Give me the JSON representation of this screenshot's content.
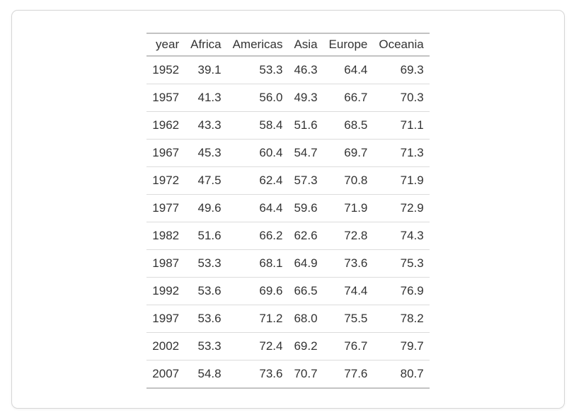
{
  "colors": {
    "text": "#333333",
    "heavy_rule": "#c3c3c3",
    "row_rule": "#dcdcdc",
    "card_border": "#d6d6d6",
    "background": "#ffffff"
  },
  "chart_data": {
    "type": "table",
    "title": "",
    "columns": [
      "year",
      "Africa",
      "Americas",
      "Asia",
      "Europe",
      "Oceania"
    ],
    "rows": [
      [
        "1952",
        "39.1",
        "53.3",
        "46.3",
        "64.4",
        "69.3"
      ],
      [
        "1957",
        "41.3",
        "56.0",
        "49.3",
        "66.7",
        "70.3"
      ],
      [
        "1962",
        "43.3",
        "58.4",
        "51.6",
        "68.5",
        "71.1"
      ],
      [
        "1967",
        "45.3",
        "60.4",
        "54.7",
        "69.7",
        "71.3"
      ],
      [
        "1972",
        "47.5",
        "62.4",
        "57.3",
        "70.8",
        "71.9"
      ],
      [
        "1977",
        "49.6",
        "64.4",
        "59.6",
        "71.9",
        "72.9"
      ],
      [
        "1982",
        "51.6",
        "66.2",
        "62.6",
        "72.8",
        "74.3"
      ],
      [
        "1987",
        "53.3",
        "68.1",
        "64.9",
        "73.6",
        "75.3"
      ],
      [
        "1992",
        "53.6",
        "69.6",
        "66.5",
        "74.4",
        "76.9"
      ],
      [
        "1997",
        "53.6",
        "71.2",
        "68.0",
        "75.5",
        "78.2"
      ],
      [
        "2002",
        "53.3",
        "72.4",
        "69.2",
        "76.7",
        "79.7"
      ],
      [
        "2007",
        "54.8",
        "73.6",
        "70.7",
        "77.6",
        "80.7"
      ]
    ],
    "layout": {
      "alignment": "right",
      "header_weight": "regular",
      "grid": "horizontal-rules-only",
      "table_centered": true
    }
  }
}
